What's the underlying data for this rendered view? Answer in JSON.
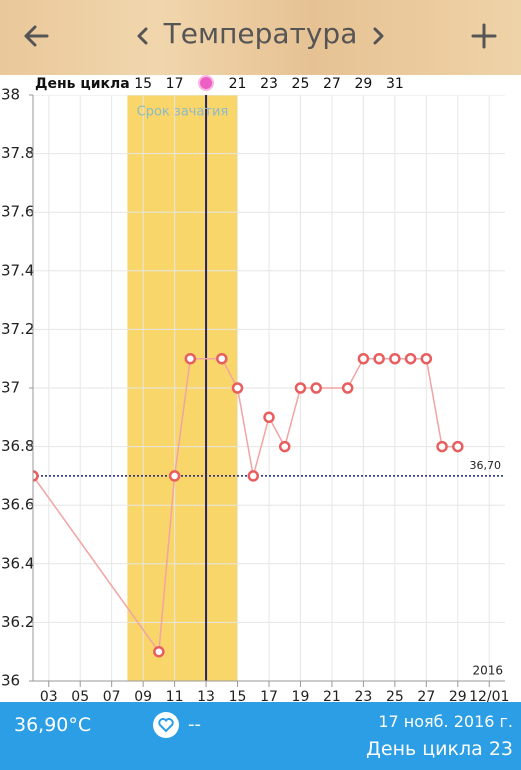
{
  "header": {
    "title": "Температура"
  },
  "chart_data": {
    "type": "line",
    "x": [
      2,
      10,
      11,
      12,
      14,
      15,
      16,
      17,
      18,
      19,
      20,
      22,
      23,
      24,
      25,
      26,
      27,
      28,
      29
    ],
    "values": [
      36.7,
      36.1,
      36.7,
      37.1,
      37.1,
      37.0,
      36.7,
      36.9,
      36.8,
      37.0,
      37.0,
      37.0,
      37.1,
      37.1,
      37.1,
      37.1,
      37.1,
      36.8,
      36.8
    ],
    "color": "#f2a3a3",
    "marker_color": "#e85e5e",
    "xlim": [
      2,
      32
    ],
    "ylim": [
      36,
      38
    ],
    "yticks": [
      36,
      36.2,
      36.4,
      36.6,
      36.8,
      37,
      37.2,
      37.4,
      37.6,
      37.8,
      38
    ],
    "xticks": [
      {
        "value": 3,
        "label": "03"
      },
      {
        "value": 5,
        "label": "05"
      },
      {
        "value": 7,
        "label": "07"
      },
      {
        "value": 9,
        "label": "09"
      },
      {
        "value": 11,
        "label": "11"
      },
      {
        "value": 13,
        "label": "13"
      },
      {
        "value": 15,
        "label": "15"
      },
      {
        "value": 17,
        "label": "17"
      },
      {
        "value": 19,
        "label": "19"
      },
      {
        "value": 21,
        "label": "21"
      },
      {
        "value": 23,
        "label": "23"
      },
      {
        "value": 25,
        "label": "25"
      },
      {
        "value": 27,
        "label": "27"
      },
      {
        "value": 29,
        "label": "29"
      },
      {
        "value": 31,
        "label": "12/01"
      }
    ],
    "year_label": "2016",
    "cycle_axis_label": "День цикла",
    "cycle_ticks": [
      {
        "value": 9,
        "label": "15"
      },
      {
        "value": 11,
        "label": "17"
      },
      {
        "value": 15,
        "label": "21"
      },
      {
        "value": 17,
        "label": "23"
      },
      {
        "value": 19,
        "label": "25"
      },
      {
        "value": 21,
        "label": "27"
      },
      {
        "value": 23,
        "label": "29"
      },
      {
        "value": 25,
        "label": "31"
      }
    ],
    "fertile_window": {
      "start": 8,
      "end": 15,
      "label": "Срок зачатия",
      "color": "#f8d66a"
    },
    "ovulation_day": 13,
    "baseline": {
      "value": 36.7,
      "label": "36,70"
    },
    "grid": true
  },
  "footer": {
    "temperature": "36,90°C",
    "mood": "--",
    "date": "17 нояб. 2016 г.",
    "cycle_day": "День цикла 23"
  }
}
